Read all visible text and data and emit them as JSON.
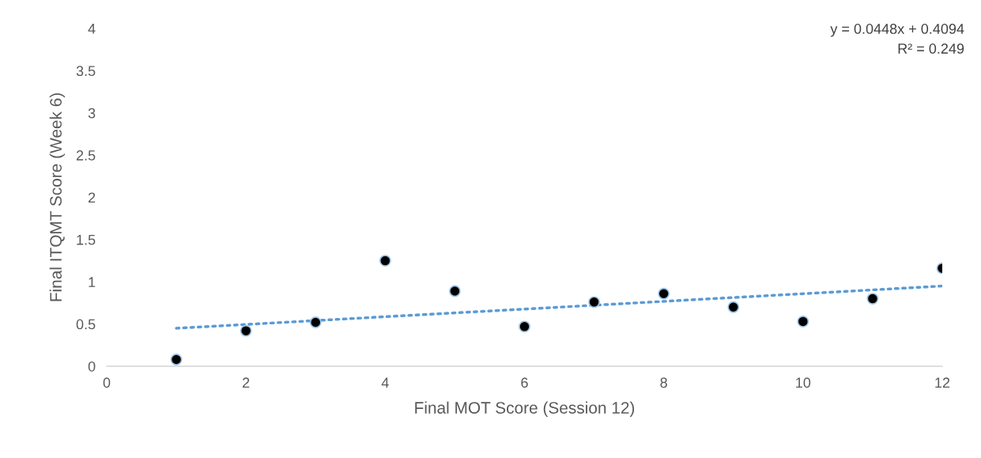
{
  "chart_data": {
    "type": "scatter",
    "xlabel": "Final MOT Score (Session 12)",
    "ylabel": "Final ITQMT Score (Week 6)",
    "xlim": [
      0,
      12
    ],
    "ylim": [
      0,
      4
    ],
    "xticks": [
      0,
      2,
      4,
      6,
      8,
      10,
      12
    ],
    "yticks": [
      0,
      0.5,
      1,
      1.5,
      2,
      2.5,
      3,
      3.5,
      4
    ],
    "grid": false,
    "series": [
      {
        "color": "#000000",
        "marker": "circle",
        "x": [
          1,
          2,
          3,
          4,
          5,
          6,
          7,
          8,
          9,
          10,
          11,
          12
        ],
        "values": [
          0.08,
          0.42,
          0.52,
          1.25,
          0.89,
          0.47,
          0.76,
          0.86,
          0.7,
          0.53,
          0.8,
          1.16
        ]
      },
      {
        "type": "line",
        "color": "#5b9bd5",
        "line_style": "dotted",
        "x": [
          1,
          12
        ],
        "values": [
          0.45,
          0.95
        ]
      }
    ],
    "annotations": [
      "y = 0.0448x + 0.4094",
      "R² = 0.249"
    ]
  }
}
